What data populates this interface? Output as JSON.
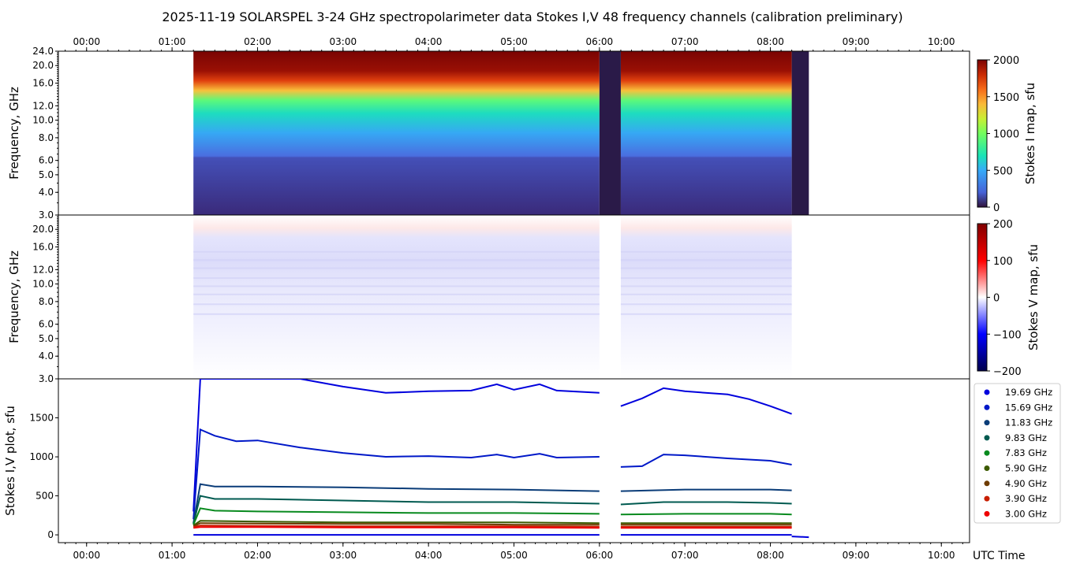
{
  "title": "2025-11-19  SOLARSPEL  3-24 GHz spectropolarimeter data   Stokes I,V   48 frequency channels   (calibration preliminary)",
  "chart_data": [
    {
      "type": "heatmap",
      "name": "Stokes I dynamic spectrum",
      "ylabel": "Frequency, GHz",
      "y_ticks": [
        "3.0",
        "4.0",
        "5.0",
        "6.0",
        "8.0",
        "10.0",
        "12.0",
        "16.0",
        "20.0",
        "24.0"
      ],
      "y_scale": "log",
      "ylim_ghz": [
        3.0,
        24.0
      ],
      "time_ticks": [
        "00:00",
        "01:00",
        "02:00",
        "03:00",
        "04:00",
        "05:00",
        "06:00",
        "07:00",
        "08:00",
        "09:00",
        "10:00"
      ],
      "time_range_hours": [
        -0.33,
        10.33
      ],
      "data_segments_hours": [
        [
          1.25,
          6.0
        ],
        [
          6.25,
          8.25
        ]
      ],
      "gap_segments_hours": [
        [
          6.0,
          6.25
        ],
        [
          8.25,
          8.45
        ]
      ],
      "colorbar": {
        "label": "Stokes I map, sfu",
        "ticks": [
          "0",
          "500",
          "1000",
          "1500",
          "2000"
        ],
        "range": [
          0,
          2000
        ],
        "colormap": "turbo"
      }
    },
    {
      "type": "heatmap",
      "name": "Stokes V dynamic spectrum",
      "ylabel": "Frequency, GHz",
      "y_ticks": [
        "3.0",
        "4.0",
        "5.0",
        "6.0",
        "8.0",
        "10.0",
        "12.0",
        "16.0",
        "20.0"
      ],
      "y_scale": "log",
      "ylim_ghz": [
        3.0,
        24.0
      ],
      "colorbar": {
        "label": "Stokes V map, sfu",
        "ticks": [
          "200",
          "100",
          "0",
          "−100",
          "−200"
        ],
        "range": [
          -200,
          200
        ],
        "colormap": "seismic"
      }
    },
    {
      "type": "line",
      "name": "Stokes I,V time profiles",
      "ylabel": "Stokes I,V plot, sfu",
      "xlabel": "UTC Time",
      "y_ticks": [
        "0",
        "500",
        "1000",
        "1500"
      ],
      "ylim": [
        -100,
        2000
      ],
      "x_units": "hours UTC",
      "series": [
        {
          "name": "19.69 GHz",
          "color": "#0000dd",
          "points": [
            [
              1.25,
              300
            ],
            [
              1.33,
              2000
            ],
            [
              2.0,
              2000
            ],
            [
              2.5,
              2000
            ],
            [
              3.0,
              1900
            ],
            [
              3.5,
              1820
            ],
            [
              4.0,
              1840
            ],
            [
              4.5,
              1850
            ],
            [
              4.8,
              1930
            ],
            [
              5.0,
              1860
            ],
            [
              5.3,
              1930
            ],
            [
              5.5,
              1850
            ],
            [
              6.0,
              1820
            ]
          ],
          "points_b": [
            [
              6.25,
              1650
            ],
            [
              6.5,
              1750
            ],
            [
              6.75,
              1880
            ],
            [
              7.0,
              1840
            ],
            [
              7.5,
              1800
            ],
            [
              7.75,
              1740
            ],
            [
              8.0,
              1650
            ],
            [
              8.25,
              1550
            ]
          ]
        },
        {
          "name": "15.69 GHz",
          "color": "#0018c8",
          "points": [
            [
              1.25,
              200
            ],
            [
              1.33,
              1350
            ],
            [
              1.5,
              1270
            ],
            [
              1.75,
              1200
            ],
            [
              2.0,
              1210
            ],
            [
              2.5,
              1120
            ],
            [
              3.0,
              1050
            ],
            [
              3.5,
              1000
            ],
            [
              4.0,
              1010
            ],
            [
              4.5,
              990
            ],
            [
              4.8,
              1030
            ],
            [
              5.0,
              990
            ],
            [
              5.3,
              1040
            ],
            [
              5.5,
              990
            ],
            [
              6.0,
              1000
            ]
          ],
          "points_b": [
            [
              6.25,
              870
            ],
            [
              6.5,
              880
            ],
            [
              6.75,
              1030
            ],
            [
              7.0,
              1020
            ],
            [
              7.5,
              980
            ],
            [
              8.0,
              950
            ],
            [
              8.25,
              900
            ]
          ]
        },
        {
          "name": "11.83 GHz",
          "color": "#0a3c78",
          "points": [
            [
              1.25,
              150
            ],
            [
              1.33,
              650
            ],
            [
              1.5,
              620
            ],
            [
              2.0,
              620
            ],
            [
              3.0,
              610
            ],
            [
              4.0,
              590
            ],
            [
              5.0,
              580
            ],
            [
              6.0,
              560
            ]
          ],
          "points_b": [
            [
              6.25,
              560
            ],
            [
              7.0,
              580
            ],
            [
              7.5,
              580
            ],
            [
              8.0,
              580
            ],
            [
              8.25,
              570
            ]
          ]
        },
        {
          "name": "9.83 GHz",
          "color": "#005a50",
          "points": [
            [
              1.25,
              140
            ],
            [
              1.33,
              500
            ],
            [
              1.5,
              460
            ],
            [
              2.0,
              460
            ],
            [
              3.0,
              440
            ],
            [
              4.0,
              420
            ],
            [
              5.0,
              420
            ],
            [
              6.0,
              400
            ]
          ],
          "points_b": [
            [
              6.25,
              390
            ],
            [
              6.75,
              420
            ],
            [
              7.5,
              420
            ],
            [
              8.0,
              410
            ],
            [
              8.25,
              400
            ]
          ]
        },
        {
          "name": "7.83 GHz",
          "color": "#088a1e",
          "points": [
            [
              1.25,
              130
            ],
            [
              1.33,
              340
            ],
            [
              1.5,
              310
            ],
            [
              2.0,
              300
            ],
            [
              3.0,
              290
            ],
            [
              4.0,
              280
            ],
            [
              5.0,
              280
            ],
            [
              6.0,
              270
            ]
          ],
          "points_b": [
            [
              6.25,
              260
            ],
            [
              7.0,
              270
            ],
            [
              8.0,
              270
            ],
            [
              8.25,
              260
            ]
          ]
        },
        {
          "name": "5.90 GHz",
          "color": "#3c5a00",
          "points": [
            [
              1.25,
              120
            ],
            [
              1.33,
              180
            ],
            [
              2.0,
              170
            ],
            [
              3.0,
              160
            ],
            [
              4.0,
              160
            ],
            [
              5.0,
              160
            ],
            [
              6.0,
              150
            ]
          ],
          "points_b": [
            [
              6.25,
              150
            ],
            [
              7.0,
              150
            ],
            [
              8.0,
              150
            ],
            [
              8.25,
              150
            ]
          ]
        },
        {
          "name": "4.90 GHz",
          "color": "#6e3c00",
          "points": [
            [
              1.25,
              110
            ],
            [
              1.33,
              150
            ],
            [
              2.0,
              145
            ],
            [
              3.0,
              140
            ],
            [
              4.0,
              140
            ],
            [
              5.0,
              130
            ],
            [
              6.0,
              130
            ]
          ],
          "points_b": [
            [
              6.25,
              130
            ],
            [
              7.0,
              130
            ],
            [
              8.0,
              130
            ],
            [
              8.25,
              130
            ]
          ]
        },
        {
          "name": "3.90 GHz",
          "color": "#c81e00",
          "points": [
            [
              1.25,
              100
            ],
            [
              1.33,
              120
            ],
            [
              2.0,
              115
            ],
            [
              3.0,
              110
            ],
            [
              4.0,
              110
            ],
            [
              5.0,
              110
            ],
            [
              6.0,
              105
            ]
          ],
          "points_b": [
            [
              6.25,
              105
            ],
            [
              7.0,
              105
            ],
            [
              8.0,
              105
            ],
            [
              8.25,
              105
            ]
          ]
        },
        {
          "name": "3.00 GHz",
          "color": "#ee0000",
          "points": [
            [
              1.25,
              90
            ],
            [
              1.33,
              100
            ],
            [
              2.0,
              100
            ],
            [
              3.0,
              95
            ],
            [
              4.0,
              95
            ],
            [
              5.0,
              95
            ],
            [
              6.0,
              90
            ]
          ],
          "points_b": [
            [
              6.25,
              90
            ],
            [
              7.0,
              90
            ],
            [
              8.0,
              90
            ],
            [
              8.25,
              90
            ]
          ]
        }
      ],
      "stokes_v_baseline": {
        "color": "#0000dd",
        "points": [
          [
            1.25,
            0
          ],
          [
            6.0,
            0
          ]
        ],
        "points_b": [
          [
            6.25,
            0
          ],
          [
            8.25,
            0
          ]
        ],
        "points_c": [
          [
            8.25,
            -20
          ],
          [
            8.45,
            -30
          ]
        ]
      }
    }
  ]
}
